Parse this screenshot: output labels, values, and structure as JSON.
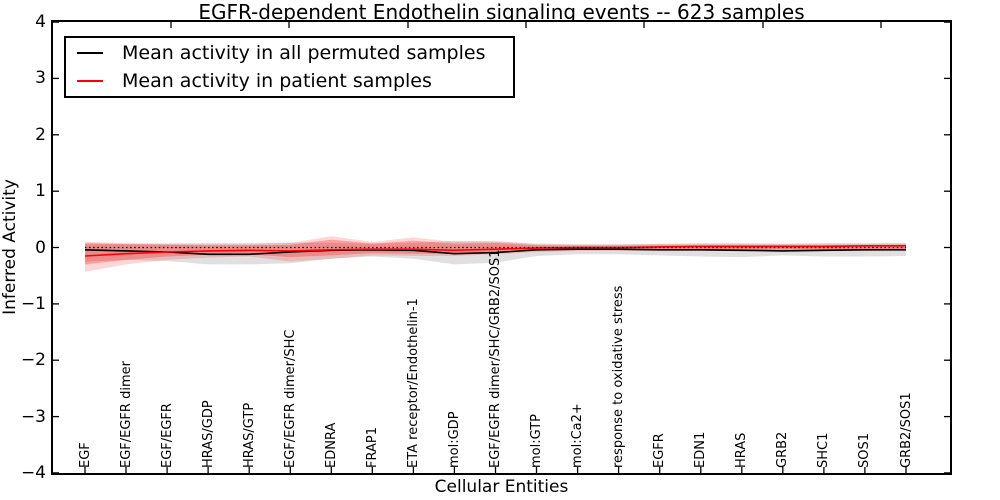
{
  "chart_data": {
    "type": "line",
    "title": "EGFR-dependent Endothelin signaling events -- 623 samples",
    "xlabel": "Cellular Entities",
    "ylabel": "Inferred Activity",
    "ylim": [
      -4,
      4
    ],
    "yticks": [
      4,
      3,
      2,
      1,
      0,
      -1,
      -2,
      -3,
      -4
    ],
    "grid": false,
    "legend_position": "upper left",
    "categories": [
      "EGF",
      "EGF/EGFR dimer",
      "EGF/EGFR",
      "HRAS/GDP",
      "HRAS/GTP",
      "EGF/EGFR dimer/SHC",
      "EDNRA",
      "FRAP1",
      "ETA receptor/Endothelin-1",
      "mol:GDP",
      "EGF/EGFR dimer/SHC/GRB2/SOS1",
      "mol:GTP",
      "mol:Ca2+",
      "response to oxidative stress",
      "EGFR",
      "EDN1",
      "HRAS",
      "GRB2",
      "SHC1",
      "SOS1",
      "GRB2/SOS1"
    ],
    "series": [
      {
        "name": "Mean activity in all permuted samples",
        "color": "#000000",
        "values": [
          -0.04,
          -0.06,
          -0.08,
          -0.12,
          -0.12,
          -0.08,
          -0.05,
          -0.04,
          -0.05,
          -0.11,
          -0.09,
          -0.04,
          -0.03,
          -0.03,
          -0.04,
          -0.04,
          -0.05,
          -0.06,
          -0.05,
          -0.04,
          -0.04
        ]
      },
      {
        "name": "Mean activity in patient samples",
        "color": "#ff0000",
        "values": [
          -0.15,
          -0.11,
          -0.08,
          -0.06,
          -0.05,
          -0.06,
          -0.04,
          -0.03,
          -0.03,
          -0.05,
          -0.03,
          -0.01,
          0.0,
          0.0,
          0.01,
          0.02,
          0.02,
          0.02,
          0.02,
          0.03,
          0.03
        ]
      }
    ],
    "bands": [
      {
        "name": "permuted-samples-spread",
        "color": "#999999",
        "opacity": 0.3,
        "upper": [
          0.06,
          0.06,
          0.07,
          0.08,
          0.08,
          0.09,
          0.08,
          0.07,
          0.08,
          0.12,
          0.1,
          0.07,
          0.06,
          0.06,
          0.07,
          0.08,
          0.08,
          0.07,
          0.08,
          0.08,
          0.08
        ],
        "lower": [
          -0.25,
          -0.22,
          -0.24,
          -0.3,
          -0.3,
          -0.28,
          -0.2,
          -0.16,
          -0.2,
          -0.3,
          -0.27,
          -0.15,
          -0.12,
          -0.12,
          -0.14,
          -0.16,
          -0.17,
          -0.14,
          -0.16,
          -0.16,
          -0.15
        ]
      },
      {
        "name": "patient-samples-spread-outer",
        "color": "#ff0000",
        "opacity": 0.16,
        "upper": [
          0.1,
          0.08,
          0.07,
          0.06,
          0.06,
          0.08,
          0.2,
          0.1,
          0.18,
          0.1,
          0.12,
          0.06,
          0.05,
          0.05,
          0.06,
          0.06,
          0.06,
          0.06,
          0.06,
          0.06,
          0.07
        ],
        "lower": [
          -0.43,
          -0.3,
          -0.22,
          -0.18,
          -0.16,
          -0.25,
          -0.2,
          -0.14,
          -0.15,
          -0.15,
          -0.12,
          -0.08,
          -0.06,
          -0.06,
          -0.06,
          -0.06,
          -0.06,
          -0.06,
          -0.06,
          -0.06,
          -0.05
        ]
      },
      {
        "name": "patient-samples-spread-inner",
        "color": "#ff0000",
        "opacity": 0.26,
        "upper": [
          0.08,
          0.06,
          0.05,
          0.04,
          0.04,
          0.05,
          0.14,
          0.07,
          0.12,
          0.07,
          0.08,
          0.04,
          0.03,
          0.03,
          0.04,
          0.04,
          0.04,
          0.04,
          0.04,
          0.04,
          0.05
        ],
        "lower": [
          -0.3,
          -0.22,
          -0.16,
          -0.13,
          -0.12,
          -0.17,
          -0.14,
          -0.1,
          -0.11,
          -0.11,
          -0.09,
          -0.06,
          -0.04,
          -0.04,
          -0.04,
          -0.04,
          -0.04,
          -0.04,
          -0.04,
          -0.04,
          -0.03
        ]
      }
    ],
    "zero_line": 0
  }
}
